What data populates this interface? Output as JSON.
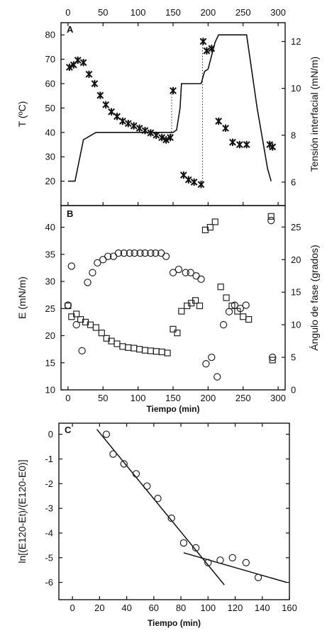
{
  "chart_data": [
    {
      "type": "scatter",
      "panel_label": "A",
      "x_top_ticks": [
        0,
        50,
        100,
        150,
        200,
        250,
        300
      ],
      "xlim": [
        -10,
        310
      ],
      "ylabel": "T (ºC)",
      "ylim": [
        10,
        85
      ],
      "y_ticks": [
        20,
        30,
        40,
        50,
        60,
        70,
        80
      ],
      "y2label": "Tensión interfacial (mN/m)",
      "y2lim": [
        5.0,
        12.8
      ],
      "y2_ticks": [
        6,
        8,
        10,
        12
      ],
      "series": [
        {
          "role": "temperature",
          "axis": "left",
          "marker": "line",
          "x": [
            0,
            10,
            22,
            40,
            60,
            100,
            140,
            150,
            155,
            160,
            162,
            185,
            190,
            195,
            200,
            210,
            215,
            250,
            255,
            270,
            285,
            290
          ],
          "y": [
            20,
            20,
            37,
            40,
            40,
            40,
            40,
            40,
            41,
            50,
            60,
            60,
            60,
            65,
            66,
            77,
            80,
            80,
            80,
            50,
            25,
            20
          ]
        },
        {
          "role": "interfacial_tension",
          "axis": "right",
          "marker": "star",
          "x": [
            2,
            8,
            14,
            22,
            30,
            38,
            46,
            54,
            62,
            70,
            78,
            86,
            94,
            102,
            110,
            118,
            126,
            134,
            140,
            146,
            150,
            165,
            172,
            180,
            190,
            193,
            198,
            205,
            215,
            225,
            235,
            245,
            255,
            288,
            292
          ],
          "y": [
            10.9,
            11.0,
            11.2,
            11.1,
            10.6,
            10.2,
            9.7,
            9.3,
            9.0,
            8.8,
            8.6,
            8.5,
            8.4,
            8.3,
            8.2,
            8.1,
            8.0,
            7.9,
            7.8,
            7.9,
            9.9,
            6.3,
            6.1,
            6.0,
            5.9,
            12.0,
            11.6,
            11.7,
            8.6,
            8.3,
            7.7,
            7.6,
            7.6,
            7.6,
            7.5
          ]
        }
      ],
      "guides": [
        {
          "style": "dotted",
          "x": 148,
          "from": [
            148,
            7.9
          ],
          "to": [
            148,
            9.9
          ]
        },
        {
          "style": "dotted",
          "x": 192,
          "from": [
            192,
            5.9
          ],
          "to": [
            192,
            12.0
          ]
        }
      ]
    },
    {
      "type": "scatter",
      "panel_label": "B",
      "x_ticks": [
        0,
        50,
        100,
        150,
        200,
        250,
        300
      ],
      "xlim": [
        -10,
        310
      ],
      "xlabel": "Tiempo (min)",
      "ylabel": "E (mN/m)",
      "ylim": [
        10,
        44
      ],
      "y_ticks": [
        10,
        15,
        20,
        25,
        30,
        35,
        40
      ],
      "y2label": "Ángulo de fase (grados)",
      "y2lim": [
        0,
        28.3
      ],
      "y2_ticks": [
        0,
        5,
        10,
        15,
        20,
        25
      ],
      "series": [
        {
          "role": "E",
          "axis": "left",
          "marker": "square",
          "x": [
            0,
            5,
            12,
            18,
            25,
            32,
            40,
            48,
            55,
            62,
            70,
            78,
            86,
            94,
            102,
            110,
            118,
            126,
            134,
            142,
            150,
            156,
            162,
            170,
            176,
            182,
            188,
            196,
            203,
            210,
            218,
            226,
            234,
            242,
            250,
            258,
            290,
            292
          ],
          "y": [
            25.5,
            23.5,
            24.0,
            23.0,
            22.5,
            22.0,
            21.5,
            20.5,
            19.5,
            19.0,
            18.5,
            18.0,
            17.8,
            17.7,
            17.5,
            17.3,
            17.2,
            17.1,
            17.0,
            16.8,
            21.2,
            20.5,
            24.5,
            25.5,
            26.0,
            26.5,
            25.5,
            39.5,
            40.0,
            41.0,
            29.0,
            27.0,
            25.5,
            24.5,
            23.5,
            23.0,
            42.0,
            15.5
          ]
        },
        {
          "role": "phase_angle",
          "axis": "right",
          "marker": "circle",
          "x": [
            0,
            5,
            12,
            20,
            28,
            35,
            42,
            50,
            57,
            65,
            72,
            80,
            88,
            95,
            103,
            110,
            118,
            125,
            133,
            140,
            150,
            158,
            168,
            175,
            183,
            190,
            197,
            205,
            213,
            222,
            230,
            238,
            246,
            254,
            290,
            292
          ],
          "y": [
            13.0,
            19.0,
            10.0,
            6.0,
            16.5,
            18.0,
            19.5,
            20.0,
            20.5,
            20.5,
            21.0,
            21.0,
            21.0,
            21.0,
            21.0,
            21.0,
            21.0,
            21.0,
            21.0,
            20.5,
            18.0,
            18.5,
            18.0,
            18.0,
            17.5,
            17.0,
            4.0,
            5.0,
            2.0,
            10.0,
            12.0,
            13.0,
            12.5,
            13.0,
            26.0,
            5.0
          ]
        }
      ]
    },
    {
      "type": "scatter",
      "panel_label": "C",
      "xlabel": "Tiempo (min)",
      "ylabel": "ln[(E120-Et)/(E120-E0)]",
      "xlim": [
        -10,
        160
      ],
      "ylim": [
        -6.7,
        0.45
      ],
      "x_ticks": [
        0,
        20,
        40,
        60,
        80,
        100,
        120,
        140,
        160
      ],
      "y_ticks": [
        0,
        -1,
        -2,
        -3,
        -4,
        -5,
        -6
      ],
      "series": [
        {
          "role": "data",
          "marker": "circle",
          "x": [
            25,
            30,
            38,
            47,
            55,
            63,
            73,
            82,
            91,
            100,
            109,
            118,
            128,
            137
          ],
          "y": [
            0.0,
            -0.8,
            -1.2,
            -1.6,
            -2.1,
            -2.6,
            -3.4,
            -4.4,
            -4.6,
            -5.2,
            -5.1,
            -5.0,
            -5.2,
            -5.8
          ]
        }
      ],
      "fit_lines": [
        {
          "from": [
            18,
            0.2
          ],
          "to": [
            112,
            -6.1
          ]
        },
        {
          "from": [
            82,
            -4.8
          ],
          "to": [
            158,
            -6.0
          ]
        }
      ]
    }
  ]
}
